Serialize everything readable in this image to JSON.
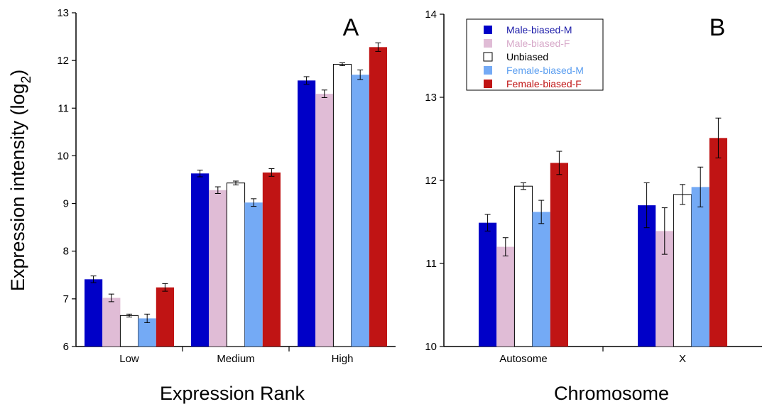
{
  "y_axis_title": "Expression intensity (log",
  "y_axis_title_sub": "2",
  "y_axis_title_end": ")",
  "legend": [
    {
      "label": "Male-biased-M",
      "color": "#0000c8",
      "text_color": "#1a1aa8"
    },
    {
      "label": "Male-biased-F",
      "color": "#e0bcd6",
      "text_color": "#d7a9c9"
    },
    {
      "label": "Unbiased",
      "color": "#ffffff",
      "text_color": "#000000"
    },
    {
      "label": "Female-biased-M",
      "color": "#74aaf5",
      "text_color": "#5b9ef0"
    },
    {
      "label": "Female-biased-F",
      "color": "#c01414",
      "text_color": "#c01414"
    }
  ],
  "chart_data": [
    {
      "type": "bar",
      "panel": "A",
      "xlabel": "Expression Rank",
      "ylabel": "Expression intensity (log2)",
      "ylim": [
        6,
        13
      ],
      "yticks": [
        "6",
        "7",
        "8",
        "9",
        "10",
        "11",
        "12",
        "13"
      ],
      "categories": [
        "Low",
        "Medium",
        "High"
      ],
      "series": [
        {
          "name": "Male-biased-M",
          "values": [
            7.41,
            9.63,
            11.58
          ],
          "errors": [
            0.07,
            0.07,
            0.08
          ]
        },
        {
          "name": "Male-biased-F",
          "values": [
            7.02,
            9.28,
            11.3
          ],
          "errors": [
            0.08,
            0.07,
            0.08
          ]
        },
        {
          "name": "Unbiased",
          "values": [
            6.65,
            9.43,
            11.92
          ],
          "errors": [
            0.03,
            0.04,
            0.03
          ]
        },
        {
          "name": "Female-biased-M",
          "values": [
            6.59,
            9.02,
            11.7
          ],
          "errors": [
            0.09,
            0.08,
            0.1
          ]
        },
        {
          "name": "Female-biased-F",
          "values": [
            7.24,
            9.65,
            12.28
          ],
          "errors": [
            0.08,
            0.08,
            0.09
          ]
        }
      ]
    },
    {
      "type": "bar",
      "panel": "B",
      "xlabel": "Chromosome",
      "ylabel": "",
      "ylim": [
        10,
        14
      ],
      "yticks": [
        "10",
        "11",
        "12",
        "13",
        "14"
      ],
      "categories": [
        "Autosome",
        "X"
      ],
      "legend_position": "top-left",
      "series": [
        {
          "name": "Male-biased-M",
          "values": [
            11.49,
            11.7
          ],
          "errors": [
            0.1,
            0.27
          ]
        },
        {
          "name": "Male-biased-F",
          "values": [
            11.2,
            11.39
          ],
          "errors": [
            0.11,
            0.28
          ]
        },
        {
          "name": "Unbiased",
          "values": [
            11.93,
            11.83
          ],
          "errors": [
            0.04,
            0.12
          ]
        },
        {
          "name": "Female-biased-M",
          "values": [
            11.62,
            11.92
          ],
          "errors": [
            0.14,
            0.24
          ]
        },
        {
          "name": "Female-biased-F",
          "values": [
            12.21,
            12.51
          ],
          "errors": [
            0.14,
            0.24
          ]
        }
      ]
    }
  ]
}
